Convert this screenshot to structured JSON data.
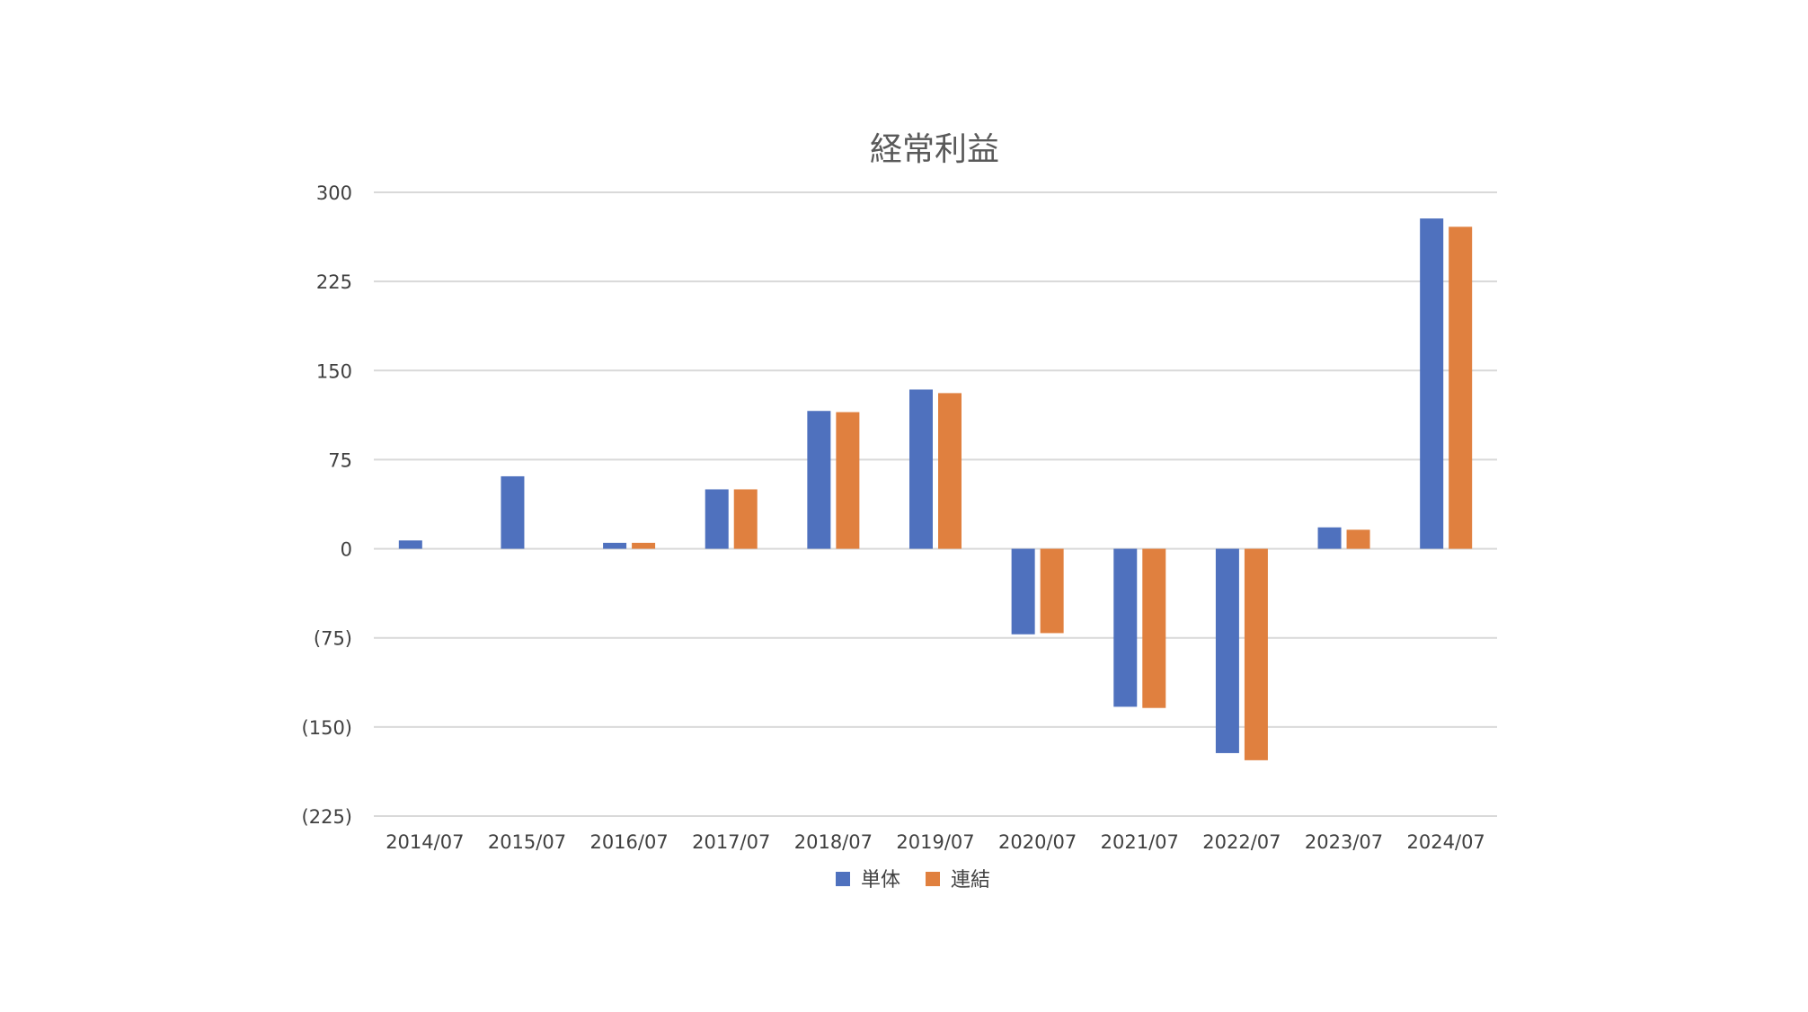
{
  "chart_data": {
    "type": "bar",
    "title": "経常利益",
    "xlabel": "",
    "ylabel": "",
    "categories": [
      "2014/07",
      "2015/07",
      "2016/07",
      "2017/07",
      "2018/07",
      "2019/07",
      "2020/07",
      "2021/07",
      "2022/07",
      "2023/07",
      "2024/07"
    ],
    "series": [
      {
        "name": "単体",
        "color": "#4F71BE",
        "values": [
          7,
          61,
          5,
          50,
          116,
          134,
          -72,
          -133,
          -172,
          18,
          278
        ]
      },
      {
        "name": "連結",
        "color": "#E0803F",
        "values": [
          null,
          null,
          5,
          50,
          115,
          131,
          -71,
          -134,
          -178,
          16,
          271
        ]
      }
    ],
    "ylim": [
      -225,
      300
    ],
    "yticks": [
      300,
      225,
      150,
      75,
      0,
      -75,
      -150,
      -225
    ],
    "ytick_labels": [
      "300",
      "225",
      "150",
      "75",
      "0",
      "(75)",
      "(150)",
      "(225)"
    ],
    "grid": true,
    "legend": "bottom"
  }
}
